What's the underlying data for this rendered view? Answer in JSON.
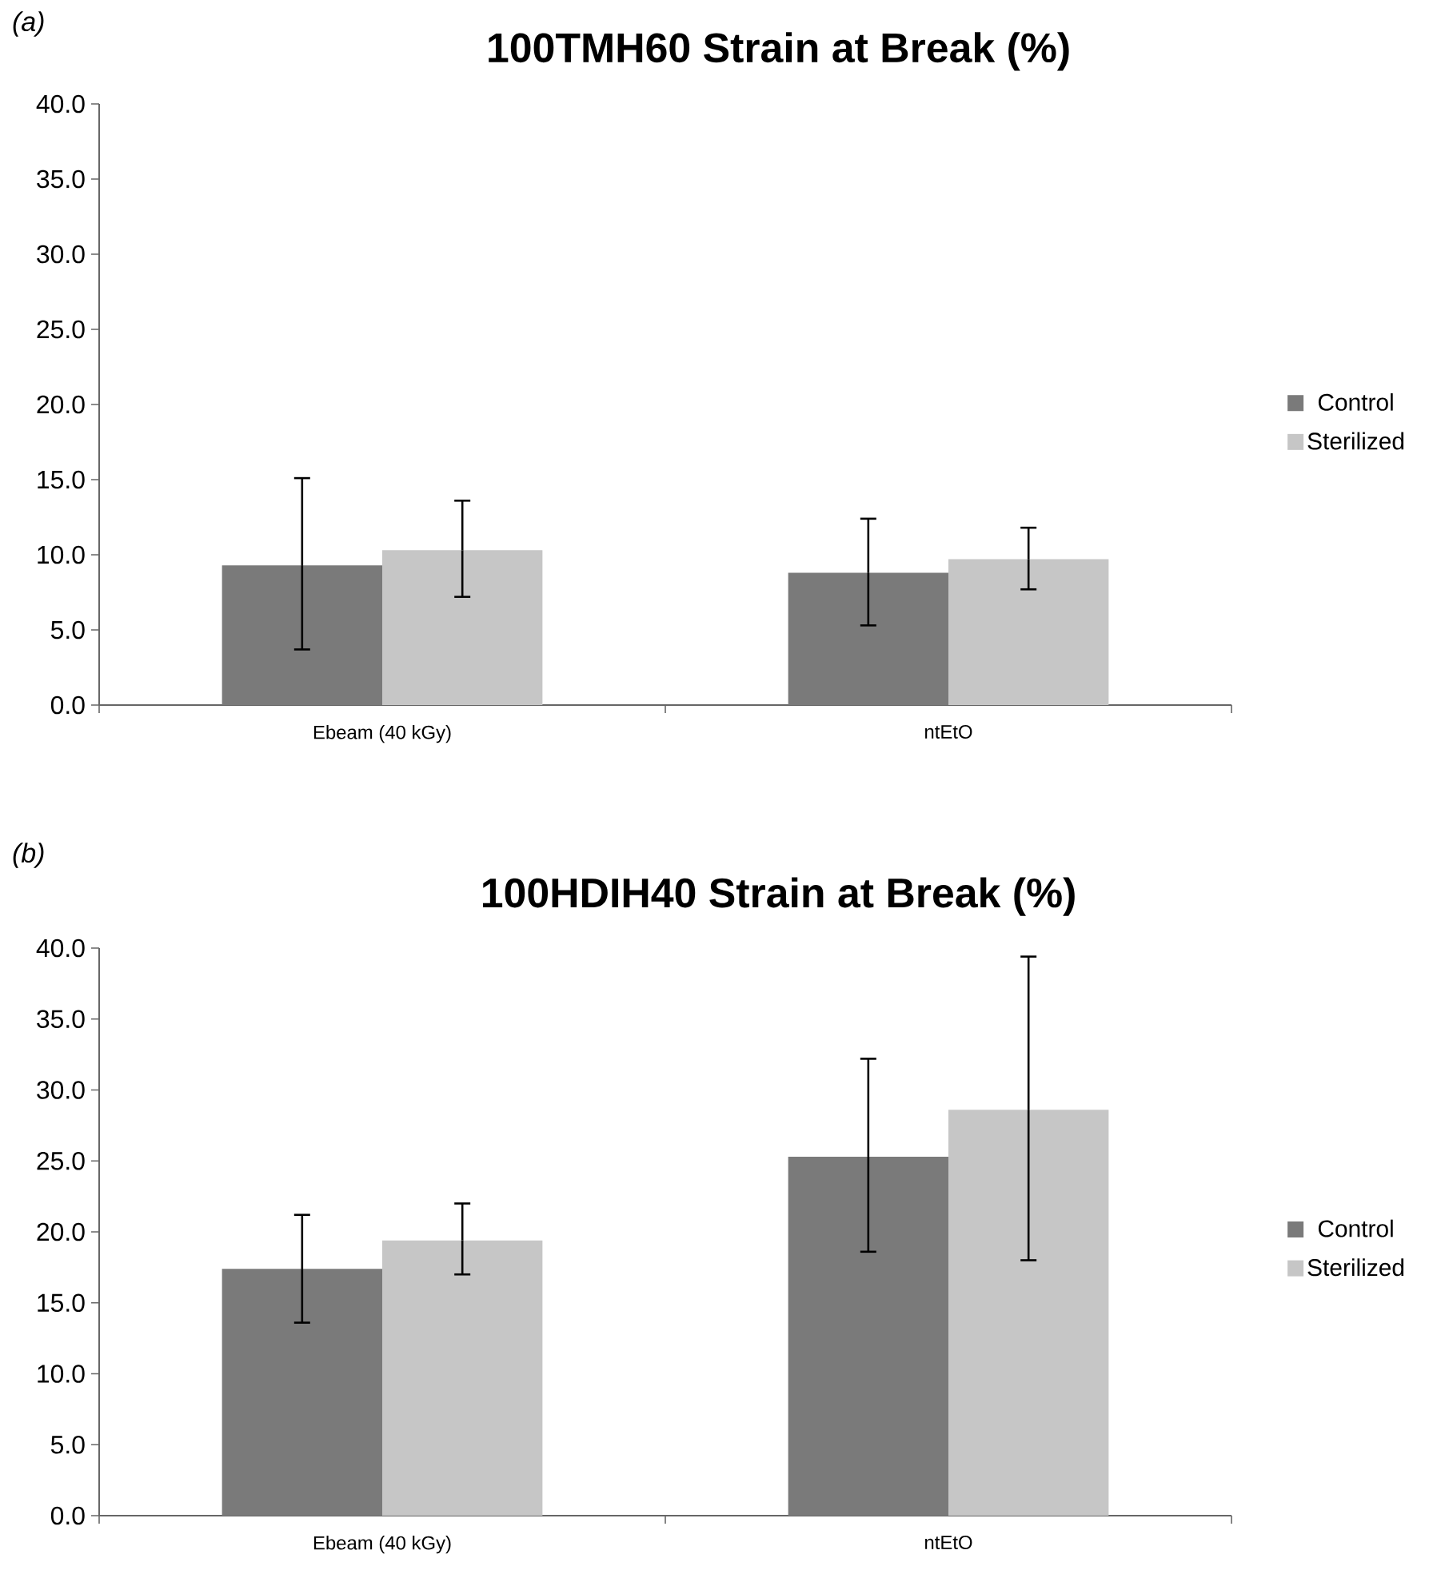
{
  "chart_data": [
    {
      "type": "bar",
      "title": "100TMH60 Strain at Break (%)",
      "annotations": [
        "(a)"
      ],
      "categories": [
        "Ebeam (40 kGy)",
        "ntEtO"
      ],
      "legend": "right",
      "series": [
        {
          "name": "Control",
          "color": "#7a7a7a",
          "values": [
            9.3,
            8.8
          ],
          "errors": [
            [
              3.7,
              15.1
            ],
            [
              5.3,
              12.4
            ]
          ]
        },
        {
          "name": "Sterilized",
          "color": "#c6c6c6",
          "values": [
            10.3,
            9.7
          ],
          "errors": [
            [
              7.2,
              13.6
            ],
            [
              7.7,
              11.8
            ]
          ]
        }
      ],
      "ylim": [
        0,
        40
      ],
      "yticks": [
        {
          "value": 0,
          "label": "0.0"
        },
        {
          "value": 5,
          "label": "5.0"
        },
        {
          "value": 10,
          "label": "10.0"
        },
        {
          "value": 15,
          "label": "15.0"
        },
        {
          "value": 20,
          "label": "20.0"
        },
        {
          "value": 25,
          "label": "25.0"
        },
        {
          "value": 30,
          "label": "30.0"
        },
        {
          "value": 35,
          "label": "35.0"
        },
        {
          "value": 40,
          "label": "40.0"
        }
      ]
    },
    {
      "type": "bar",
      "title": "100HDIH40 Strain at Break (%)",
      "annotations": [
        "(b)"
      ],
      "categories": [
        "Ebeam (40 kGy)",
        "ntEtO"
      ],
      "legend": "right",
      "series": [
        {
          "name": "Control",
          "color": "#7a7a7a",
          "values": [
            17.4,
            25.3
          ],
          "errors": [
            [
              13.6,
              21.2
            ],
            [
              18.6,
              32.2
            ]
          ]
        },
        {
          "name": "Sterilized",
          "color": "#c6c6c6",
          "values": [
            19.4,
            28.6
          ],
          "errors": [
            [
              17.0,
              22.0
            ],
            [
              18.0,
              39.4
            ]
          ]
        }
      ],
      "ylim": [
        0,
        40
      ],
      "yticks": [
        {
          "value": 0,
          "label": "0.0"
        },
        {
          "value": 5,
          "label": "5.0"
        },
        {
          "value": 10,
          "label": "10.0"
        },
        {
          "value": 15,
          "label": "15.0"
        },
        {
          "value": 20,
          "label": "20.0"
        },
        {
          "value": 25,
          "label": "25.0"
        },
        {
          "value": 30,
          "label": "30.0"
        },
        {
          "value": 35,
          "label": "35.0"
        },
        {
          "value": 40,
          "label": "40.0"
        }
      ]
    }
  ]
}
